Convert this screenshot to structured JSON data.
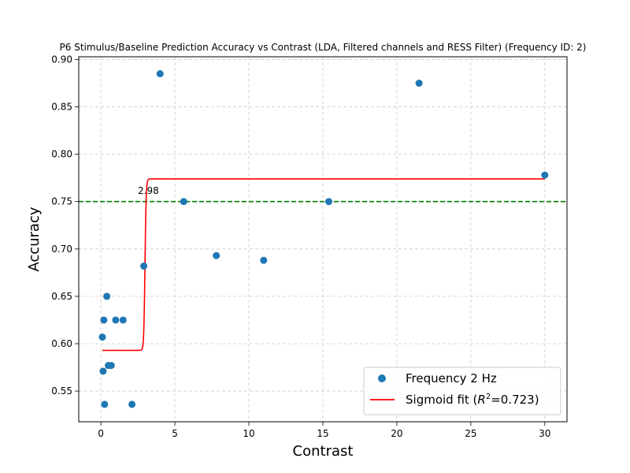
{
  "chart_data": {
    "type": "scatter",
    "title": "P6 Stimulus/Baseline Prediction Accuracy vs Contrast (LDA, Filtered channels and RESS Filter) (Frequency ID: 2)",
    "xlabel": "Contrast",
    "ylabel": "Accuracy",
    "xlim": [
      -1.4964,
      31.5
    ],
    "ylim": [
      0.5176,
      0.9029
    ],
    "xticks": [
      0,
      5,
      10,
      15,
      20,
      25,
      30
    ],
    "yticks": [
      0.55,
      0.6,
      0.65,
      0.7,
      0.75,
      0.8,
      0.85,
      0.9
    ],
    "xtick_labels": [
      "0",
      "5",
      "10",
      "15",
      "20",
      "25",
      "30"
    ],
    "ytick_labels": [
      "0.55",
      "0.60",
      "0.65",
      "0.70",
      "0.75",
      "0.80",
      "0.85",
      "0.90"
    ],
    "grid": true,
    "legend_position": "lower-right",
    "series": [
      {
        "name": "Frequency 2 Hz",
        "kind": "scatter",
        "color": "#1f77b4",
        "x": [
          0.1,
          0.15,
          0.2,
          0.25,
          0.4,
          0.5,
          0.7,
          1.0,
          1.5,
          2.1,
          2.9,
          4.0,
          5.6,
          7.8,
          11.0,
          15.4,
          21.5,
          30.0
        ],
        "y": [
          0.607,
          0.571,
          0.625,
          0.536,
          0.65,
          0.577,
          0.577,
          0.625,
          0.625,
          0.536,
          0.682,
          0.885,
          0.75,
          0.693,
          0.688,
          0.75,
          0.875,
          0.778
        ]
      },
      {
        "name": "Sigmoid fit ($R^2$=0.723)",
        "kind": "sigmoid-line",
        "color": "#ff0000",
        "x_range": [
          0.1,
          30.0
        ],
        "params": {
          "lower": 0.593,
          "upper": 0.774,
          "midpoint": 2.98,
          "slope": 25
        }
      }
    ],
    "reference_lines": [
      {
        "kind": "horizontal",
        "y": 0.75,
        "color": "#008000",
        "style": "dashed"
      }
    ],
    "annotations": [
      {
        "text": "2.98",
        "x": 2.5,
        "y": 0.758
      }
    ],
    "legend": {
      "entries": [
        {
          "label_prefix": "Sigmoid fit (",
          "label_math": "R",
          "label_sup": "2",
          "label_suffix": "=0.723)"
        }
      ]
    }
  }
}
